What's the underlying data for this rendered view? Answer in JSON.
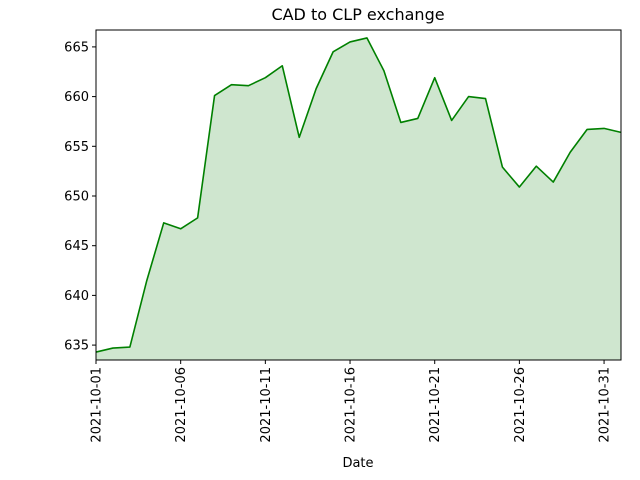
{
  "chart_data": {
    "type": "area",
    "title": "CAD to CLP exchange",
    "xlabel": "Date",
    "ylabel": "",
    "x": [
      "2021-10-01",
      "2021-10-02",
      "2021-10-03",
      "2021-10-04",
      "2021-10-05",
      "2021-10-06",
      "2021-10-07",
      "2021-10-08",
      "2021-10-09",
      "2021-10-10",
      "2021-10-11",
      "2021-10-12",
      "2021-10-13",
      "2021-10-14",
      "2021-10-15",
      "2021-10-16",
      "2021-10-17",
      "2021-10-18",
      "2021-10-19",
      "2021-10-20",
      "2021-10-21",
      "2021-10-22",
      "2021-10-23",
      "2021-10-24",
      "2021-10-25",
      "2021-10-26",
      "2021-10-27",
      "2021-10-28",
      "2021-10-29",
      "2021-10-30",
      "2021-10-31",
      "2021-11-01"
    ],
    "values": [
      634.3,
      634.7,
      634.8,
      641.5,
      647.3,
      646.7,
      647.8,
      660.1,
      661.2,
      661.1,
      661.9,
      663.1,
      655.9,
      660.8,
      664.5,
      665.5,
      665.9,
      662.6,
      657.4,
      657.8,
      661.9,
      657.6,
      660.0,
      659.8,
      652.9,
      650.9,
      653.0,
      651.4,
      654.4,
      656.7,
      656.8,
      656.4
    ],
    "xticks": [
      "2021-10-01",
      "2021-10-06",
      "2021-10-11",
      "2021-10-16",
      "2021-10-21",
      "2021-10-26",
      "2021-10-31"
    ],
    "yticks": [
      635,
      640,
      645,
      650,
      655,
      660,
      665
    ],
    "ylim": [
      633.5,
      666.7
    ],
    "line_color": "#008000",
    "fill_color": "#cfe6cf",
    "grid": false,
    "legend": "none"
  }
}
